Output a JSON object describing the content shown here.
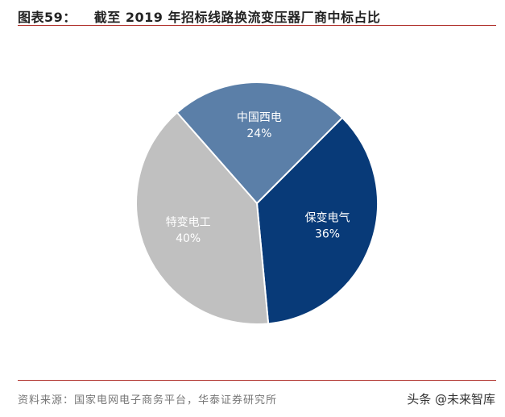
{
  "figure_label": "图表59：",
  "title": "截至 2019 年招标线路换流变压器厂商中标占比",
  "source": "资料来源：国家电网电子商务平台，华泰证券研究所",
  "watermark": "头条 @未来智库",
  "chart_data": {
    "type": "pie",
    "title": "截至 2019 年招标线路换流变压器厂商中标占比",
    "start_angle_deg": 45,
    "slices": [
      {
        "label": "保变电气",
        "value": 36,
        "display": "36%",
        "color": "#083a78"
      },
      {
        "label": "特变电工",
        "value": 40,
        "display": "40%",
        "color": "#c0c0c0"
      },
      {
        "label": "中国西电",
        "value": 24,
        "display": "24%",
        "color": "#5b7fa8"
      }
    ]
  }
}
